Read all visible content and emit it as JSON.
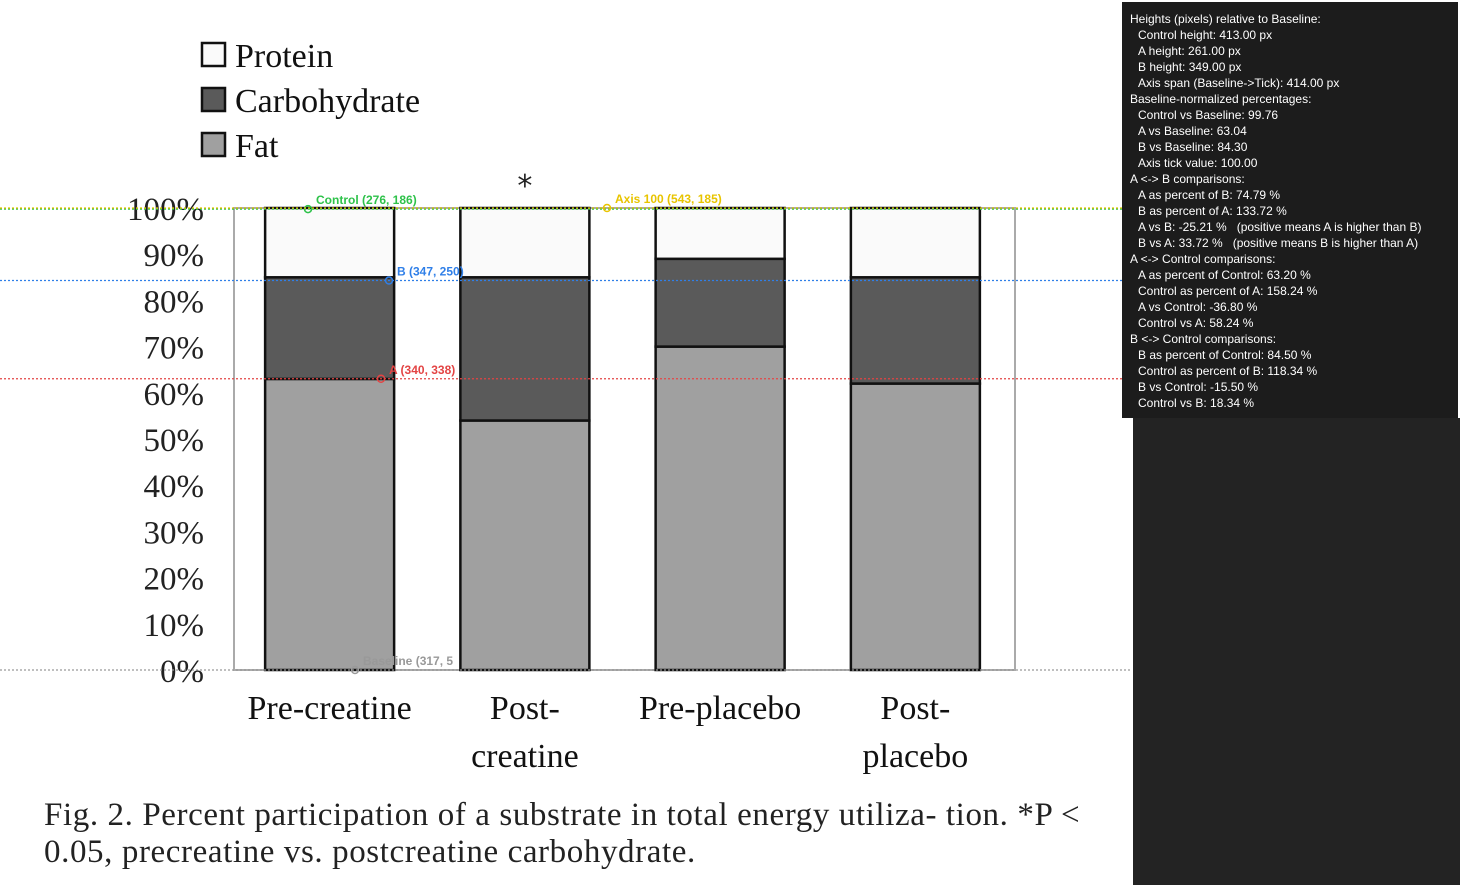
{
  "chart_data": {
    "type": "bar",
    "stacked": true,
    "categories": [
      "Pre-creatine",
      "Post-\ncreatine",
      "Pre-placebo",
      "Post-\nplacebo"
    ],
    "series": [
      {
        "name": "Fat",
        "color": "#a0a0a0",
        "values": [
          63,
          54,
          70,
          62
        ]
      },
      {
        "name": "Carbohydrate",
        "color": "#5a5a5a",
        "values": [
          22,
          31,
          19,
          23
        ]
      },
      {
        "name": "Protein",
        "color": "#fafafa",
        "values": [
          15,
          15,
          11,
          15
        ]
      }
    ],
    "legend_order": [
      "Protein",
      "Carbohydrate",
      "Fat"
    ],
    "legend_position": "top-left",
    "ylim": [
      0,
      100
    ],
    "yticks": [
      "0%",
      "10%",
      "20%",
      "30%",
      "40%",
      "50%",
      "60%",
      "70%",
      "80%",
      "90%",
      "100%"
    ],
    "significance_marker": {
      "text": "*",
      "category": "Post-\ncreatine"
    },
    "xlabel": "",
    "ylabel": "",
    "caption": "Fig. 2. Percent participation of a substrate in total energy utiliza- tion. *P < 0.05, precreatine vs. postcreatine carbohydrate."
  },
  "annotations": {
    "lines": [
      {
        "label": "Control (276, 186)",
        "color": "#2ec24a",
        "y_value": 99.76
      },
      {
        "label": "Axis 100 (543, 185)",
        "color": "#e8c400",
        "y_value": 100.0
      },
      {
        "label": "B (347, 250)",
        "color": "#2f7fe8",
        "y_value": 84.3
      },
      {
        "label": "A (340, 338)",
        "color": "#e34444",
        "y_value": 63.04
      },
      {
        "label": "Baseline (317, 5",
        "color": "#999999",
        "y_value": 0
      }
    ]
  },
  "info_panel": {
    "lines": [
      {
        "t": "Heights (pixels) relative to Baseline:",
        "indent": false
      },
      {
        "t": "Control height: 413.00 px",
        "indent": true
      },
      {
        "t": "A height: 261.00 px",
        "indent": true
      },
      {
        "t": "B height: 349.00 px",
        "indent": true
      },
      {
        "t": "Axis span (Baseline->Tick): 414.00 px",
        "indent": true
      },
      {
        "t": "Baseline-normalized percentages:",
        "indent": false
      },
      {
        "t": "Control vs Baseline: 99.76",
        "indent": true
      },
      {
        "t": "A vs Baseline: 63.04",
        "indent": true
      },
      {
        "t": "B vs Baseline: 84.30",
        "indent": true
      },
      {
        "t": "Axis tick value: 100.00",
        "indent": true
      },
      {
        "t": "A <-> B comparisons:",
        "indent": false
      },
      {
        "t": "A as percent of B: 74.79 %",
        "indent": true
      },
      {
        "t": "B as percent of A: 133.72 %",
        "indent": true
      },
      {
        "t": "A vs B: -25.21 %   (positive means A is higher than B)",
        "indent": true
      },
      {
        "t": "B vs A: 33.72 %   (positive means B is higher than A)",
        "indent": true
      },
      {
        "t": "A <-> Control comparisons:",
        "indent": false
      },
      {
        "t": "A as percent of Control: 63.20 %",
        "indent": true
      },
      {
        "t": "Control as percent of A: 158.24 %",
        "indent": true
      },
      {
        "t": "A vs Control: -36.80 %",
        "indent": true
      },
      {
        "t": "Control vs A: 58.24 %",
        "indent": true
      },
      {
        "t": "B <-> Control comparisons:",
        "indent": false
      },
      {
        "t": "B as percent of Control: 84.50 %",
        "indent": true
      },
      {
        "t": "Control as percent of B: 118.34 %",
        "indent": true
      },
      {
        "t": "B vs Control: -15.50 %",
        "indent": true
      },
      {
        "t": "Control vs B: 18.34 %",
        "indent": true
      }
    ]
  }
}
